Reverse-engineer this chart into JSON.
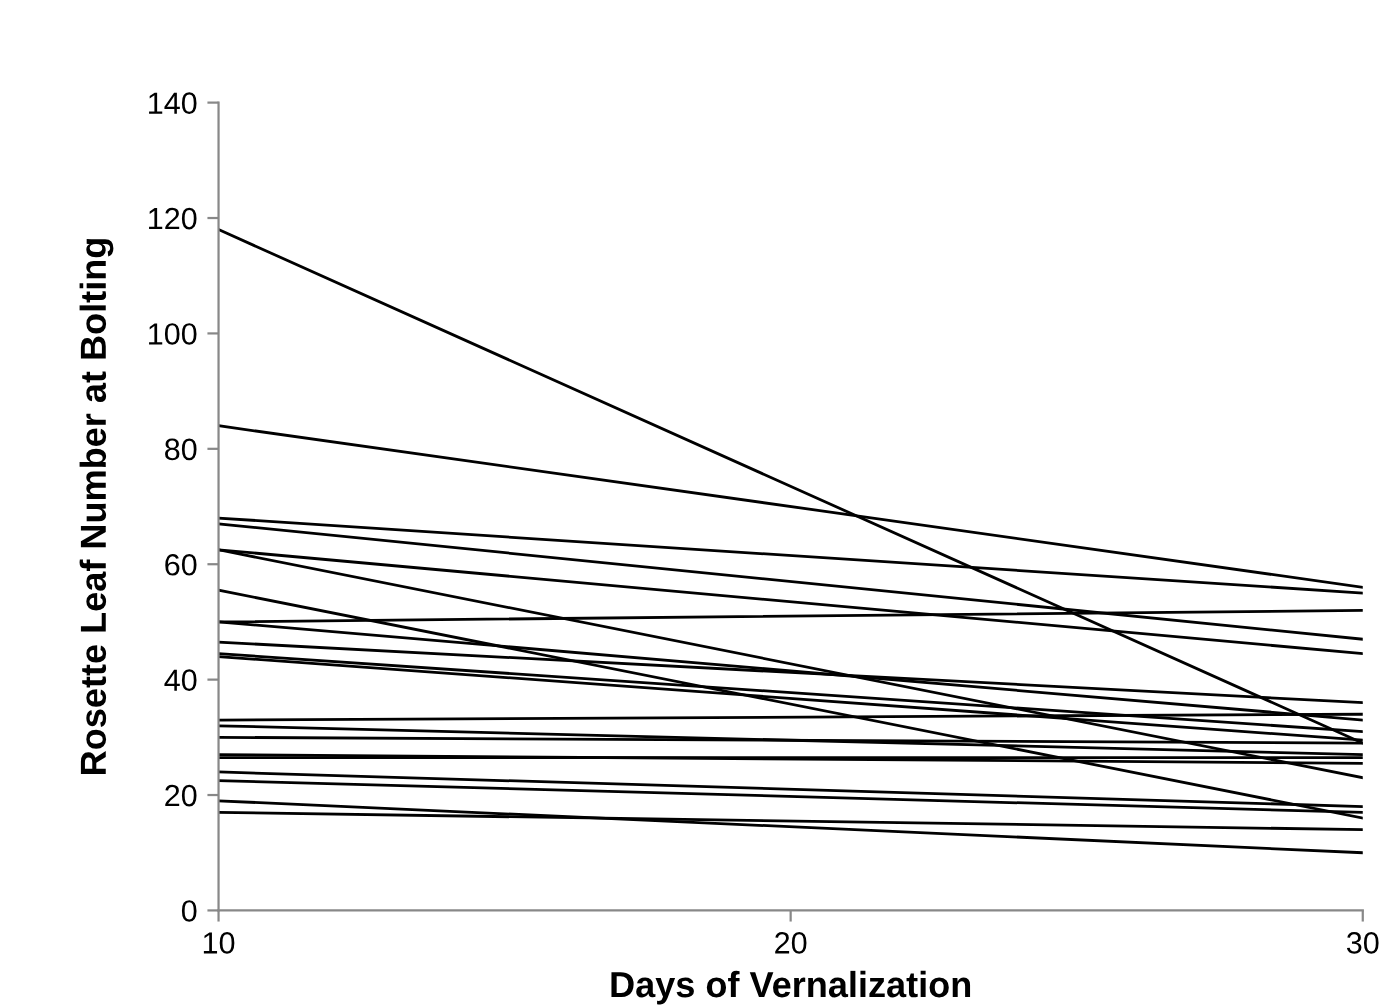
{
  "chart_data": {
    "type": "line",
    "xlabel": "Days of Vernalization",
    "ylabel": "Rosette Leaf Number at Bolting",
    "x": [
      10,
      30
    ],
    "xlim": [
      10,
      30
    ],
    "xticks": [
      10,
      20,
      30
    ],
    "ylim": [
      0,
      140
    ],
    "yticks": [
      0,
      20,
      40,
      60,
      80,
      100,
      120,
      140
    ],
    "grid": false,
    "legend": false,
    "marker": "none",
    "line_style": "solid",
    "series": [
      {
        "color": "#000000",
        "values": [
          118,
          29
        ]
      },
      {
        "color": "#000000",
        "values": [
          84,
          56
        ]
      },
      {
        "color": "#000000",
        "values": [
          68,
          55
        ]
      },
      {
        "color": "#000000",
        "values": [
          67,
          47
        ]
      },
      {
        "color": "#000000",
        "values": [
          62.5,
          44.5
        ]
      },
      {
        "color": "#000000",
        "values": [
          62.5,
          23
        ]
      },
      {
        "color": "#000000",
        "values": [
          55.5,
          16
        ]
      },
      {
        "color": "#000000",
        "values": [
          50,
          52
        ]
      },
      {
        "color": "#000000",
        "values": [
          50,
          33
        ]
      },
      {
        "color": "#000000",
        "values": [
          46.5,
          36
        ]
      },
      {
        "color": "#000000",
        "values": [
          44.5,
          31
        ]
      },
      {
        "color": "#000000",
        "values": [
          44,
          29.5
        ]
      },
      {
        "color": "#000000",
        "values": [
          33,
          34
        ]
      },
      {
        "color": "#000000",
        "values": [
          32,
          27
        ]
      },
      {
        "color": "#000000",
        "values": [
          30,
          29
        ]
      },
      {
        "color": "#000000",
        "values": [
          27,
          25.5
        ]
      },
      {
        "color": "#000000",
        "values": [
          26.5,
          26.5
        ]
      },
      {
        "color": "#000000",
        "values": [
          24,
          18
        ]
      },
      {
        "color": "#000000",
        "values": [
          22.5,
          17
        ]
      },
      {
        "color": "#000000",
        "values": [
          19,
          10
        ]
      },
      {
        "color": "#000000",
        "values": [
          17,
          14
        ]
      }
    ]
  }
}
